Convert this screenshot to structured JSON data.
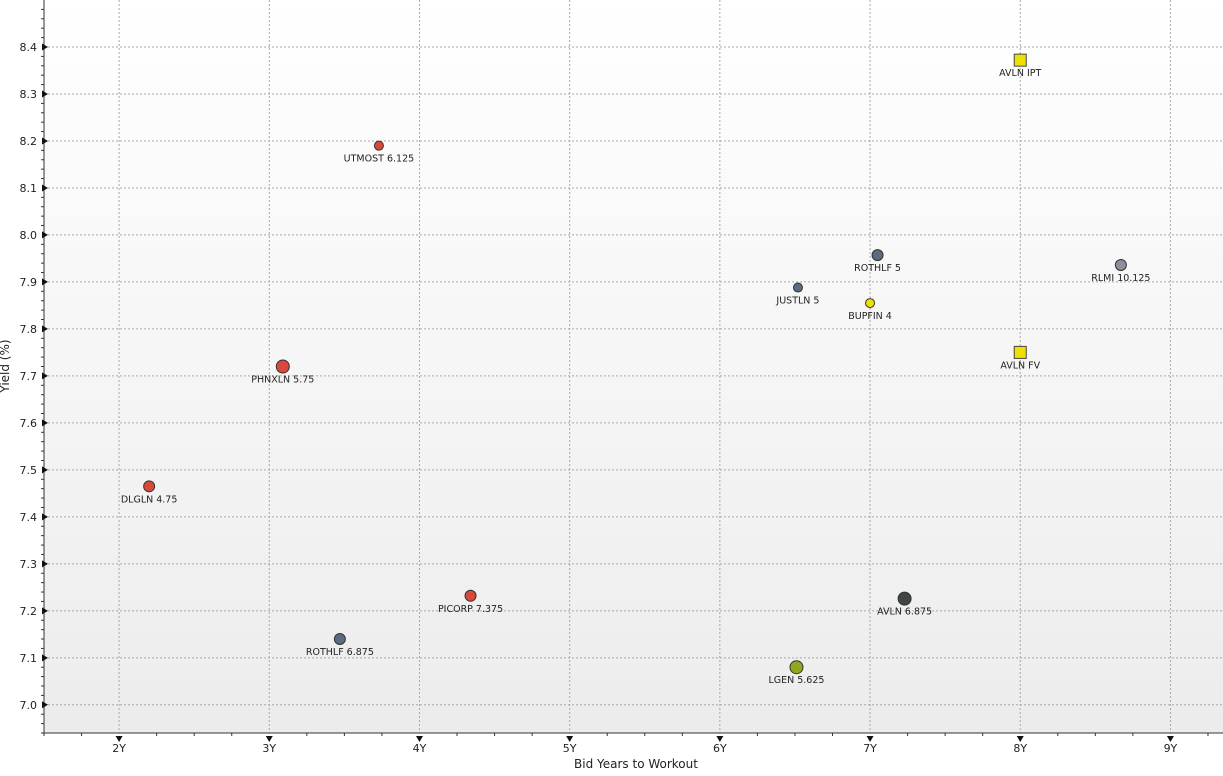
{
  "chart_data": {
    "type": "scatter",
    "title": "",
    "xlabel": "Bid Years to Workout",
    "ylabel": "Yield (%)",
    "xlim": [
      1.5,
      9.35
    ],
    "ylim": [
      6.94,
      8.5
    ],
    "grid": true,
    "x_ticks": [
      {
        "value": 2,
        "label": "2Y"
      },
      {
        "value": 3,
        "label": "3Y"
      },
      {
        "value": 4,
        "label": "4Y"
      },
      {
        "value": 5,
        "label": "5Y"
      },
      {
        "value": 6,
        "label": "6Y"
      },
      {
        "value": 7,
        "label": "7Y"
      },
      {
        "value": 8,
        "label": "8Y"
      },
      {
        "value": 9,
        "label": "9Y"
      }
    ],
    "y_ticks": [
      {
        "value": 7.0,
        "label": "7.0"
      },
      {
        "value": 7.1,
        "label": "7.1"
      },
      {
        "value": 7.2,
        "label": "7.2"
      },
      {
        "value": 7.3,
        "label": "7.3"
      },
      {
        "value": 7.4,
        "label": "7.4"
      },
      {
        "value": 7.5,
        "label": "7.5"
      },
      {
        "value": 7.6,
        "label": "7.6"
      },
      {
        "value": 7.7,
        "label": "7.7"
      },
      {
        "value": 7.8,
        "label": "7.8"
      },
      {
        "value": 7.9,
        "label": "7.9"
      },
      {
        "value": 8.0,
        "label": "8.0"
      },
      {
        "value": 8.1,
        "label": "8.1"
      },
      {
        "value": 8.2,
        "label": "8.2"
      },
      {
        "value": 8.3,
        "label": "8.3"
      },
      {
        "value": 8.4,
        "label": "8.4"
      }
    ],
    "points": [
      {
        "label": "UTMOST 6.125",
        "x": 3.73,
        "y": 8.19,
        "color": "#d9483b",
        "marker": "circle",
        "size": "small"
      },
      {
        "label": "PHNXLN 5.75",
        "x": 3.09,
        "y": 7.72,
        "color": "#d9483b",
        "marker": "circle",
        "size": "large"
      },
      {
        "label": "DLGLN 4.75",
        "x": 2.2,
        "y": 7.465,
        "color": "#d9483b",
        "marker": "circle",
        "size": "medium"
      },
      {
        "label": "PICORP 7.375",
        "x": 4.34,
        "y": 7.232,
        "color": "#d9483b",
        "marker": "circle",
        "size": "medium"
      },
      {
        "label": "ROTHLF 6.875",
        "x": 3.47,
        "y": 7.14,
        "color": "#5b6b80",
        "marker": "circle",
        "size": "medium"
      },
      {
        "label": "JUSTLN 5",
        "x": 6.52,
        "y": 7.888,
        "color": "#5b6b80",
        "marker": "circle",
        "size": "small"
      },
      {
        "label": "ROTHLF 5",
        "x": 7.05,
        "y": 7.957,
        "color": "#5b6b80",
        "marker": "circle",
        "size": "medium"
      },
      {
        "label": "BUPFIN 4",
        "x": 7.0,
        "y": 7.855,
        "color": "#f0e000",
        "marker": "circle",
        "size": "small"
      },
      {
        "label": "RLMI 10.125",
        "x": 8.67,
        "y": 7.936,
        "color": "#8c8f9c",
        "marker": "circle",
        "size": "medium"
      },
      {
        "label": "AVLN IPT",
        "x": 8.0,
        "y": 8.372,
        "color": "#f0e000",
        "marker": "square",
        "size": "large"
      },
      {
        "label": "AVLN FV",
        "x": 8.0,
        "y": 7.75,
        "color": "#f0e000",
        "marker": "square",
        "size": "large"
      },
      {
        "label": "AVLN 6.875",
        "x": 7.23,
        "y": 7.226,
        "color": "#3f4540",
        "marker": "circle",
        "size": "large"
      },
      {
        "label": "LGEN 5.625",
        "x": 6.51,
        "y": 7.08,
        "color": "#8fa820",
        "marker": "circle",
        "size": "large"
      }
    ]
  }
}
